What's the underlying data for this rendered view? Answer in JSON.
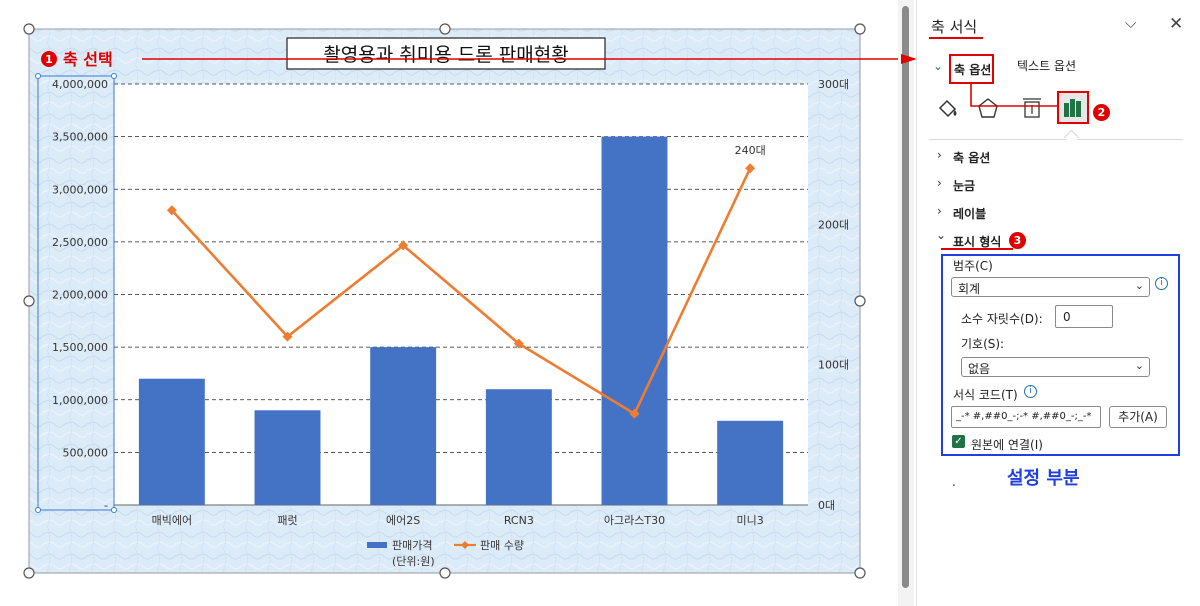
{
  "chart_data": {
    "type": "bar",
    "title": "촬영용과 취미용 드론 판매현황",
    "categories": [
      "매빅에어",
      "패럿",
      "에어2S",
      "RCN3",
      "아그라스T30",
      "미니3"
    ],
    "series": [
      {
        "name": "판매가격 (단위:원)",
        "type": "bar",
        "axis": "left",
        "color": "#4472C4",
        "values": [
          1200000,
          900000,
          1500000,
          1100000,
          3500000,
          800000
        ]
      },
      {
        "name": "판매 수량",
        "type": "line",
        "axis": "right",
        "color": "#ED7D31",
        "values": [
          210,
          120,
          185,
          115,
          65,
          240
        ]
      }
    ],
    "ylim": [
      0,
      4000000
    ],
    "y_ticks": [
      "-",
      "500,000",
      "1,000,000",
      "1,500,000",
      "2,000,000",
      "2,500,000",
      "3,000,000",
      "3,500,000",
      "4,000,000"
    ],
    "y2lim": [
      0,
      300
    ],
    "y2_ticks": [
      "0대",
      "100대",
      "200대",
      "300대"
    ],
    "data_label": "240대",
    "legend_items": [
      "판매가격",
      "판매 수량"
    ],
    "legend_sub": "(단위:원)",
    "legend_position": "bottom",
    "grid": true
  },
  "annotations": {
    "step1_num": "1",
    "step1_text": "축 선택",
    "step2_num": "2",
    "step3_num": "3",
    "settings_caption": "설정 부분",
    "dot": "."
  },
  "panel": {
    "title": "축 서식",
    "tab_axis_options": "축 옵션",
    "tab_text_options": "텍스트 옵션",
    "sections": [
      "축 옵션",
      "눈금",
      "레이블",
      "표시 형식"
    ],
    "category_label": "범주(C)",
    "category_value": "회계",
    "decimal_label": "소수 자릿수(D):",
    "decimal_value": "0",
    "symbol_label": "기호(S):",
    "symbol_value": "없음",
    "format_code_label": "서식 코드(T)",
    "format_code_value": "_-* #,##0_-;-* #,##0_-;_-*",
    "add_button": "추가(A)",
    "link_source_label": "원본에 연결(I)",
    "link_source_checked": true,
    "colors": {
      "accent_red": "#E00000",
      "accent_blue": "#1F3FE0",
      "check_green": "#217346",
      "bar_blue": "#4472C4",
      "line_orange": "#ED7D31"
    }
  }
}
